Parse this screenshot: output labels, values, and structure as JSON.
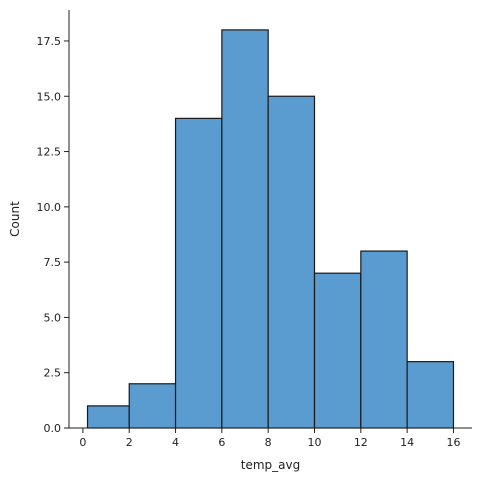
{
  "chart_data": {
    "type": "bar",
    "title": "",
    "xlabel": "temp_avg",
    "ylabel": "Count",
    "bins": [
      {
        "x0": 0.2,
        "x1": 2.0,
        "count": 1
      },
      {
        "x0": 2.0,
        "x1": 4.0,
        "count": 2
      },
      {
        "x0": 4.0,
        "x1": 6.0,
        "count": 14
      },
      {
        "x0": 6.0,
        "x1": 8.0,
        "count": 18
      },
      {
        "x0": 8.0,
        "x1": 10.0,
        "count": 15
      },
      {
        "x0": 10.0,
        "x1": 12.0,
        "count": 7
      },
      {
        "x0": 12.0,
        "x1": 14.0,
        "count": 8
      },
      {
        "x0": 14.0,
        "x1": 16.0,
        "count": 3
      }
    ],
    "xlim": [
      -0.6,
      16.8
    ],
    "ylim": [
      0,
      18.9
    ],
    "xticks": [
      0,
      2,
      4,
      6,
      8,
      10,
      12,
      14,
      16
    ],
    "xtick_labels": [
      "0",
      "2",
      "4",
      "6",
      "8",
      "10",
      "12",
      "14",
      "16"
    ],
    "yticks": [
      0,
      2.5,
      5,
      7.5,
      10,
      12.5,
      15,
      17.5
    ],
    "ytick_labels": [
      "0.0",
      "2.5",
      "5.0",
      "7.5",
      "10.0",
      "12.5",
      "15.0",
      "17.5"
    ],
    "bar_color": "#5a9bd0",
    "edge_color": "#1a1a1a",
    "grid": false,
    "legend": "none"
  }
}
